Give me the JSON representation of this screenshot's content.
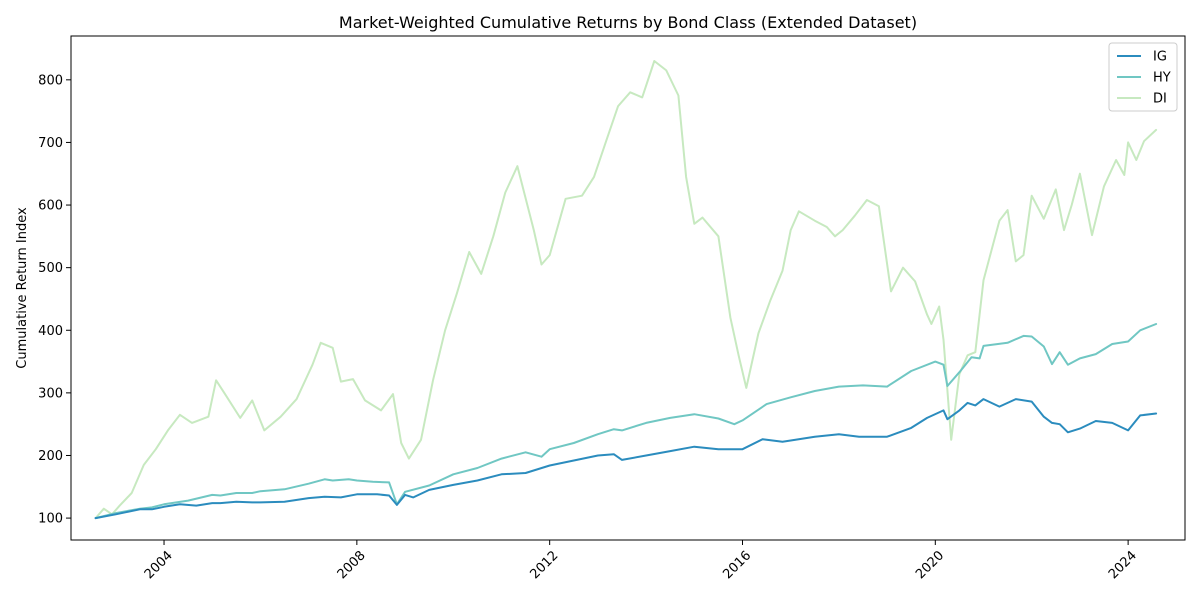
{
  "chart_data": {
    "type": "line",
    "title": "Market-Weighted Cumulative Returns by Bond Class (Extended Dataset)",
    "xlabel": "",
    "ylabel": "Cumulative Return Index",
    "xlim": [
      2002.07,
      2025.18
    ],
    "ylim": [
      65,
      870
    ],
    "x_ticks": [
      2004,
      2008,
      2012,
      2016,
      2020,
      2024
    ],
    "y_ticks": [
      100,
      200,
      300,
      400,
      500,
      600,
      700,
      800
    ],
    "grid": false,
    "legend_position": "top-right",
    "series": [
      {
        "name": "IG",
        "color": "#2b8cbe",
        "x": [
          2002.58,
          2003.0,
          2003.5,
          2003.75,
          2004.0,
          2004.33,
          2004.67,
          2005.0,
          2005.17,
          2005.5,
          2005.83,
          2006.0,
          2006.5,
          2007.0,
          2007.33,
          2007.67,
          2008.0,
          2008.42,
          2008.67,
          2008.83,
          2009.0,
          2009.17,
          2009.5,
          2010.0,
          2010.5,
          2011.0,
          2011.5,
          2012.0,
          2012.5,
          2013.0,
          2013.33,
          2013.5,
          2014.0,
          2014.5,
          2015.0,
          2015.5,
          2016.0,
          2016.42,
          2016.83,
          2017.0,
          2017.5,
          2018.0,
          2018.42,
          2019.0,
          2019.5,
          2019.83,
          2020.17,
          2020.25,
          2020.5,
          2020.67,
          2020.83,
          2021.0,
          2021.33,
          2021.67,
          2022.0,
          2022.25,
          2022.42,
          2022.58,
          2022.75,
          2023.0,
          2023.33,
          2023.67,
          2024.0,
          2024.25,
          2024.58
        ],
        "values": [
          100,
          106,
          114,
          114,
          118,
          122,
          120,
          124,
          124,
          126,
          125,
          125,
          126,
          132,
          134,
          133,
          138,
          138,
          136,
          121,
          137,
          133,
          145,
          153,
          160,
          170,
          172,
          184,
          192,
          200,
          202,
          193,
          200,
          207,
          214,
          210,
          210,
          226,
          222,
          224,
          230,
          234,
          230,
          230,
          244,
          260,
          272,
          258,
          272,
          284,
          280,
          290,
          278,
          290,
          286,
          262,
          252,
          250,
          237,
          243,
          255,
          252,
          240,
          264,
          267
        ]
      },
      {
        "name": "HY",
        "color": "#70c7c3",
        "x": [
          2002.58,
          2003.0,
          2003.5,
          2003.75,
          2004.0,
          2004.5,
          2005.0,
          2005.17,
          2005.5,
          2005.83,
          2006.0,
          2006.5,
          2007.0,
          2007.33,
          2007.5,
          2007.83,
          2008.0,
          2008.33,
          2008.67,
          2008.83,
          2009.0,
          2009.5,
          2010.0,
          2010.5,
          2011.0,
          2011.5,
          2011.83,
          2012.0,
          2012.5,
          2013.0,
          2013.33,
          2013.5,
          2014.0,
          2014.5,
          2015.0,
          2015.5,
          2015.83,
          2016.0,
          2016.5,
          2017.0,
          2017.5,
          2018.0,
          2018.5,
          2019.0,
          2019.5,
          2020.0,
          2020.17,
          2020.25,
          2020.5,
          2020.75,
          2020.92,
          2021.0,
          2021.5,
          2021.83,
          2022.0,
          2022.25,
          2022.42,
          2022.58,
          2022.75,
          2023.0,
          2023.33,
          2023.67,
          2024.0,
          2024.25,
          2024.58
        ],
        "values": [
          100,
          108,
          115,
          117,
          122,
          128,
          137,
          136,
          140,
          140,
          143,
          146,
          155,
          162,
          160,
          162,
          160,
          158,
          157,
          122,
          142,
          152,
          170,
          180,
          195,
          205,
          198,
          210,
          220,
          234,
          242,
          240,
          252,
          260,
          266,
          259,
          250,
          256,
          282,
          293,
          303,
          310,
          312,
          310,
          335,
          350,
          345,
          311,
          333,
          357,
          355,
          375,
          380,
          391,
          390,
          374,
          346,
          365,
          345,
          355,
          362,
          378,
          382,
          400,
          410
        ]
      },
      {
        "name": "DI",
        "color": "#c7e9c0",
        "x": [
          2002.58,
          2002.75,
          2002.92,
          2003.08,
          2003.33,
          2003.58,
          2003.83,
          2004.08,
          2004.33,
          2004.58,
          2004.92,
          2005.08,
          2005.25,
          2005.58,
          2005.83,
          2006.08,
          2006.42,
          2006.75,
          2007.08,
          2007.25,
          2007.5,
          2007.67,
          2007.92,
          2008.17,
          2008.5,
          2008.75,
          2008.92,
          2009.08,
          2009.33,
          2009.58,
          2009.83,
          2010.08,
          2010.33,
          2010.58,
          2010.83,
          2011.08,
          2011.33,
          2011.67,
          2011.83,
          2012.0,
          2012.33,
          2012.67,
          2012.92,
          2013.17,
          2013.42,
          2013.67,
          2013.92,
          2014.17,
          2014.42,
          2014.67,
          2014.83,
          2015.0,
          2015.17,
          2015.5,
          2015.75,
          2015.92,
          2016.08,
          2016.33,
          2016.58,
          2016.83,
          2017.0,
          2017.17,
          2017.5,
          2017.75,
          2017.92,
          2018.08,
          2018.33,
          2018.58,
          2018.83,
          2019.08,
          2019.33,
          2019.58,
          2019.83,
          2019.92,
          2020.08,
          2020.17,
          2020.33,
          2020.5,
          2020.67,
          2020.83,
          2021.0,
          2021.33,
          2021.5,
          2021.67,
          2021.83,
          2022.0,
          2022.25,
          2022.5,
          2022.67,
          2022.83,
          2023.0,
          2023.25,
          2023.5,
          2023.75,
          2023.92,
          2024.0,
          2024.17,
          2024.33,
          2024.58
        ],
        "values": [
          100,
          115,
          106,
          120,
          140,
          185,
          210,
          240,
          265,
          252,
          262,
          320,
          300,
          260,
          288,
          240,
          262,
          290,
          345,
          380,
          372,
          318,
          322,
          288,
          272,
          298,
          220,
          195,
          225,
          320,
          400,
          460,
          525,
          490,
          550,
          620,
          662,
          560,
          505,
          520,
          610,
          615,
          645,
          702,
          758,
          780,
          772,
          830,
          815,
          775,
          645,
          570,
          580,
          550,
          420,
          360,
          308,
          395,
          448,
          495,
          560,
          590,
          575,
          565,
          550,
          560,
          583,
          608,
          598,
          462,
          500,
          478,
          425,
          410,
          438,
          385,
          225,
          330,
          360,
          365,
          480,
          575,
          592,
          510,
          520,
          615,
          578,
          625,
          560,
          600,
          650,
          552,
          630,
          672,
          648,
          700,
          672,
          702,
          720
        ]
      }
    ]
  }
}
